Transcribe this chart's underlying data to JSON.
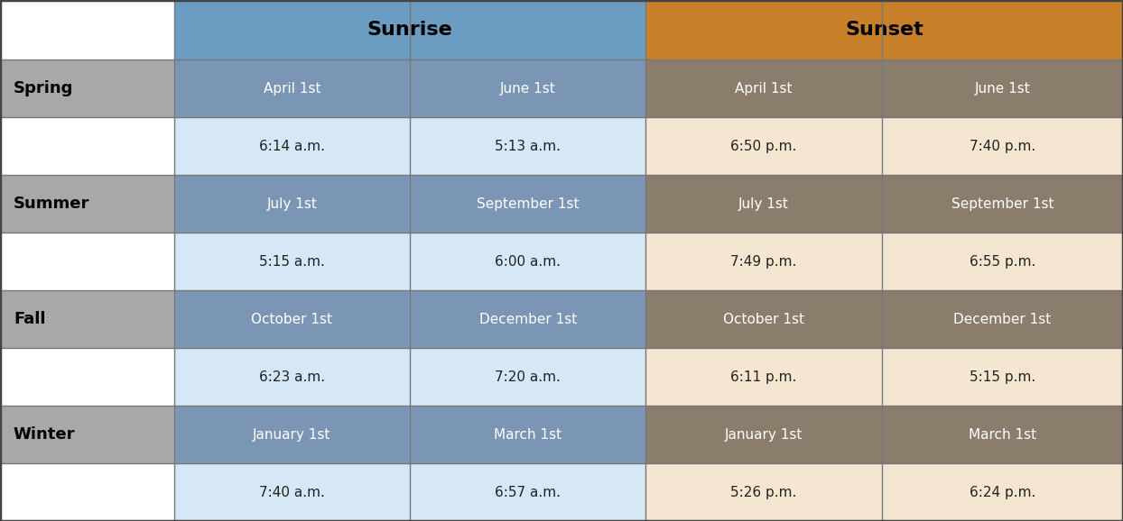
{
  "header_row": {
    "sunrise_label": "Sunrise",
    "sunset_label": "Sunset",
    "sunrise_bg": "#6B9DC2",
    "sunset_bg": "#C8812A"
  },
  "date_rows": [
    {
      "season": "Spring",
      "sunrise_date1": "April 1st",
      "sunrise_date2": "June 1st",
      "sunset_date1": "April 1st",
      "sunset_date2": "June 1st",
      "sunrise_time1": "6:14 a.m.",
      "sunrise_time2": "5:13 a.m.",
      "sunset_time1": "6:50 p.m.",
      "sunset_time2": "7:40 p.m."
    },
    {
      "season": "Summer",
      "sunrise_date1": "July 1st",
      "sunrise_date2": "September 1st",
      "sunset_date1": "July 1st",
      "sunset_date2": "September 1st",
      "sunrise_time1": "5:15 a.m.",
      "sunrise_time2": "6:00 a.m.",
      "sunset_time1": "7:49 p.m.",
      "sunset_time2": "6:55 p.m."
    },
    {
      "season": "Fall",
      "sunrise_date1": "October 1st",
      "sunrise_date2": "December 1st",
      "sunset_date1": "October 1st",
      "sunset_date2": "December 1st",
      "sunrise_time1": "6:23 a.m.",
      "sunrise_time2": "7:20 a.m.",
      "sunset_time1": "6:11 p.m.",
      "sunset_time2": "5:15 p.m."
    },
    {
      "season": "Winter",
      "sunrise_date1": "January 1st",
      "sunrise_date2": "March 1st",
      "sunset_date1": "January 1st",
      "sunset_date2": "March 1st",
      "sunrise_time1": "7:40 a.m.",
      "sunrise_time2": "6:57 a.m.",
      "sunset_time1": "5:26 p.m.",
      "sunset_time2": "6:24 p.m."
    }
  ],
  "colors": {
    "date_row_season_bg": "#A8A8A8",
    "date_row_sunrise_bg": "#7B96B4",
    "date_row_sunset_bg": "#8B7D6B",
    "time_row_sunrise_bg": "#D6E8F5",
    "time_row_sunset_bg": "#F5E6D2",
    "season_date_bg": "#AAAAAA",
    "white": "#ffffff",
    "border": "#777777",
    "season_bold_text": "#000000",
    "date_text_white": "#ffffff",
    "time_text_dark": "#222222"
  },
  "fig_width": 12.44,
  "fig_height": 5.78,
  "dpi": 100
}
